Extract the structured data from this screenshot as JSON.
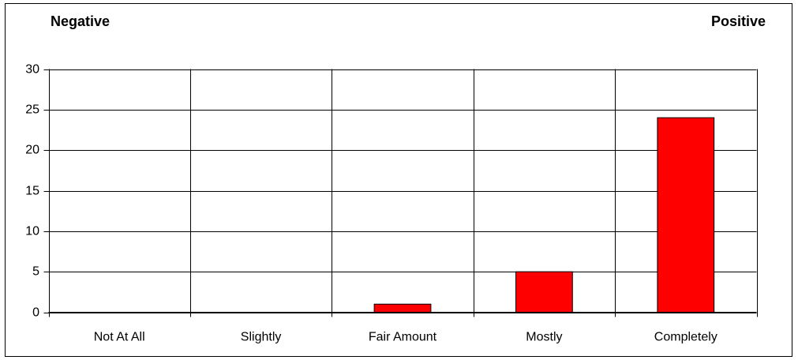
{
  "chart_data": {
    "type": "bar",
    "annotations": [
      "Negative",
      "Positive"
    ],
    "categories": [
      "Not At All",
      "Slightly",
      "Fair Amount",
      "Mostly",
      "Completely"
    ],
    "values": [
      0,
      0,
      1,
      5,
      24
    ],
    "color": "#ff0000",
    "ylim": [
      0,
      30
    ],
    "yticks": [
      0,
      5,
      10,
      15,
      20,
      25,
      30
    ],
    "grid": true
  }
}
